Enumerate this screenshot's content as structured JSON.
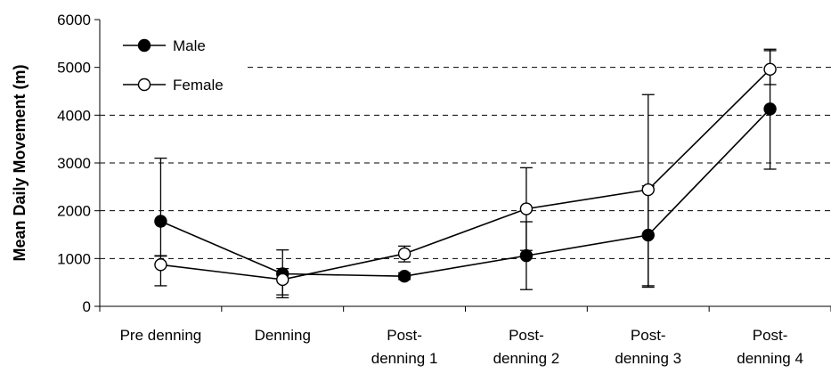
{
  "chart_data": {
    "type": "line",
    "title": "",
    "xlabel": "",
    "ylabel": "Mean Daily Movement (m)",
    "ylim": [
      0,
      6000
    ],
    "yticks": [
      0,
      1000,
      2000,
      3000,
      4000,
      5000,
      6000
    ],
    "grid": "horizontal-dashed",
    "legend": "top-left",
    "categories": [
      [
        "Pre denning"
      ],
      [
        "Denning"
      ],
      [
        "Post-",
        "denning 1"
      ],
      [
        "Post-",
        "denning 2"
      ],
      [
        "Post-",
        "denning 3"
      ],
      [
        "Post-",
        "denning 4"
      ]
    ],
    "series": [
      {
        "name": "Male",
        "marker": "filled-circle",
        "values": [
          1780,
          680,
          630,
          1060,
          1490,
          4130
        ],
        "error_low": [
          1060,
          180,
          560,
          350,
          400,
          2870
        ],
        "error_high": [
          3100,
          1180,
          700,
          1770,
          2520,
          5350
        ]
      },
      {
        "name": "Female",
        "marker": "open-circle",
        "values": [
          870,
          560,
          1100,
          2040,
          2440,
          4960
        ],
        "error_low": [
          430,
          240,
          930,
          1170,
          430,
          4640
        ],
        "error_high": [
          1050,
          790,
          1260,
          2900,
          4430,
          5380
        ]
      }
    ]
  }
}
